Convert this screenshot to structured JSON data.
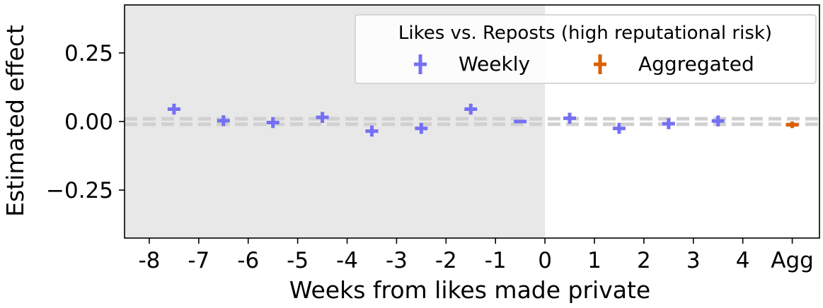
{
  "chart_data": {
    "type": "scatter",
    "xlabel": "Weeks from likes made private",
    "ylabel": "Estimated effect",
    "x_tick_labels": [
      "-8",
      "-7",
      "-6",
      "-5",
      "-4",
      "-3",
      "-2",
      "-1",
      "0",
      "1",
      "2",
      "3",
      "4",
      "Agg"
    ],
    "y_ticks": [
      0.25,
      0.0,
      -0.25
    ],
    "y_tick_labels": [
      "0.25",
      "0.00",
      "−0.25"
    ],
    "ylim": [
      -0.425,
      0.425
    ],
    "xlim": [
      -8.5,
      5.55
    ],
    "shaded_region": {
      "x_from": -8.5,
      "x_to": 0,
      "color": "#e8e8e8"
    },
    "reference_line": {
      "y": 0,
      "band_half_width": 0.01,
      "color": "#d0d0d0",
      "style": "dashed"
    },
    "legend": {
      "title": "Likes vs. Reposts (high reputational risk)",
      "position": "top-right",
      "entries": [
        {
          "label": "Weekly",
          "color": "#7570f3"
        },
        {
          "label": "Aggregated",
          "color": "#d95f02"
        }
      ]
    },
    "series": [
      {
        "name": "Weekly",
        "color": "#7570f3",
        "points": [
          {
            "x": -7.5,
            "y": 0.045,
            "err": 0.02
          },
          {
            "x": -6.5,
            "y": 0.003,
            "err": 0.02
          },
          {
            "x": -5.5,
            "y": -0.004,
            "err": 0.02
          },
          {
            "x": -4.5,
            "y": 0.015,
            "err": 0.02
          },
          {
            "x": -3.5,
            "y": -0.035,
            "err": 0.02
          },
          {
            "x": -2.5,
            "y": -0.025,
            "err": 0.02
          },
          {
            "x": -1.5,
            "y": 0.045,
            "err": 0.02
          },
          {
            "x": -0.5,
            "y": 0.0,
            "err": 0.0
          },
          {
            "x": 0.5,
            "y": 0.012,
            "err": 0.02
          },
          {
            "x": 1.5,
            "y": -0.025,
            "err": 0.02
          },
          {
            "x": 2.5,
            "y": -0.008,
            "err": 0.02
          },
          {
            "x": 3.5,
            "y": 0.002,
            "err": 0.02
          }
        ]
      },
      {
        "name": "Aggregated",
        "color": "#d95f02",
        "points": [
          {
            "x": 5.0,
            "y": -0.012,
            "err": 0.012
          }
        ]
      }
    ]
  }
}
